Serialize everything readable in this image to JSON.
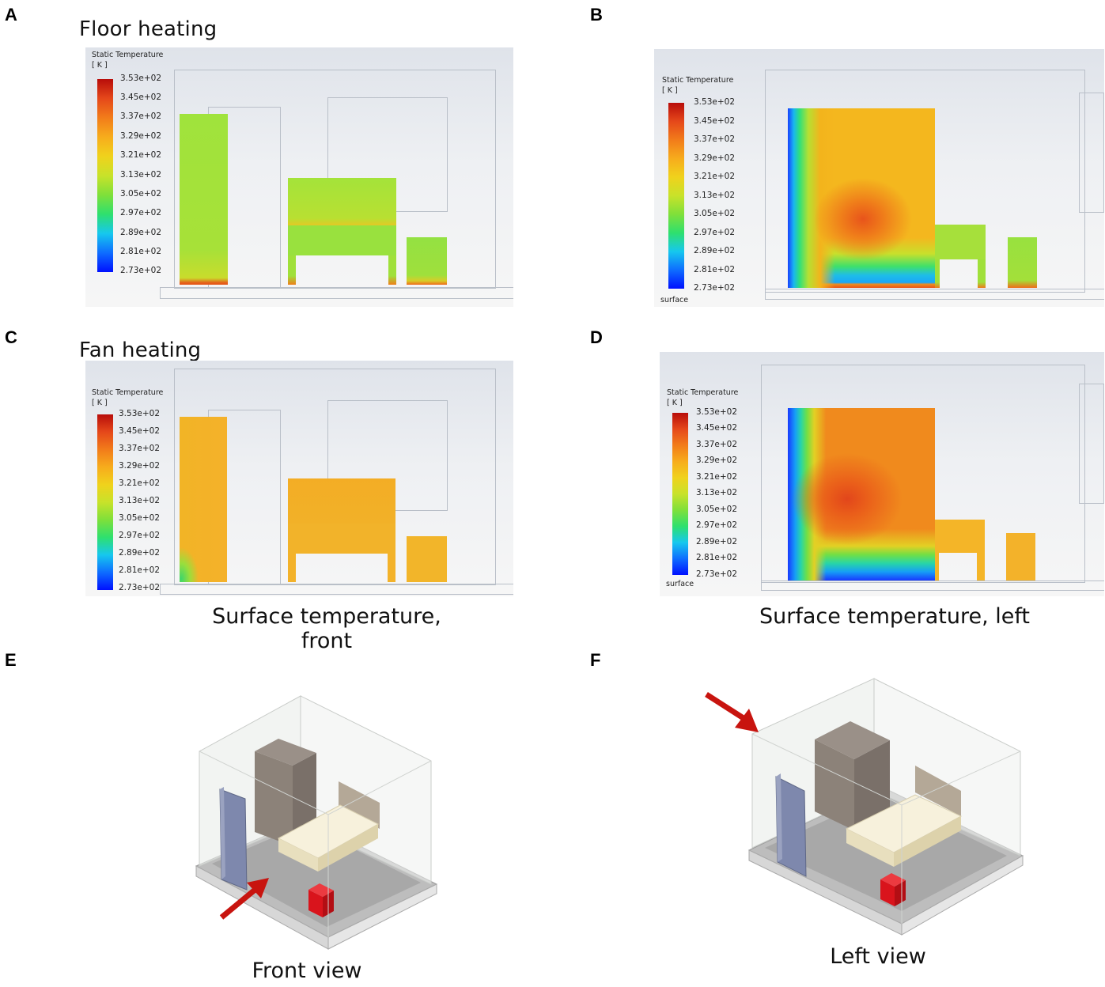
{
  "panel_labels": {
    "A": "A",
    "B": "B",
    "C": "C",
    "D": "D",
    "E": "E",
    "F": "F"
  },
  "headings": {
    "floor": "Floor heating",
    "fan": "Fan heating"
  },
  "captions": {
    "front": "Surface temperature, front",
    "left": "Surface temperature, left",
    "front_view": "Front view",
    "left_view": "Left view"
  },
  "legend": {
    "title": "Static Temperature",
    "unit": "[ K ]",
    "surface": "surface",
    "ticks": [
      "3.53e+02",
      "3.45e+02",
      "3.37e+02",
      "3.29e+02",
      "3.21e+02",
      "3.13e+02",
      "3.05e+02",
      "2.97e+02",
      "2.89e+02",
      "2.81e+02",
      "2.73e+02"
    ]
  },
  "colors": {
    "arrow": "#c8140f",
    "heater": "#d9141c",
    "wardrobe": "#8c8279",
    "door": "#7a84a8",
    "bed": "#f4efd9",
    "floor": "#a9a9a9"
  }
}
